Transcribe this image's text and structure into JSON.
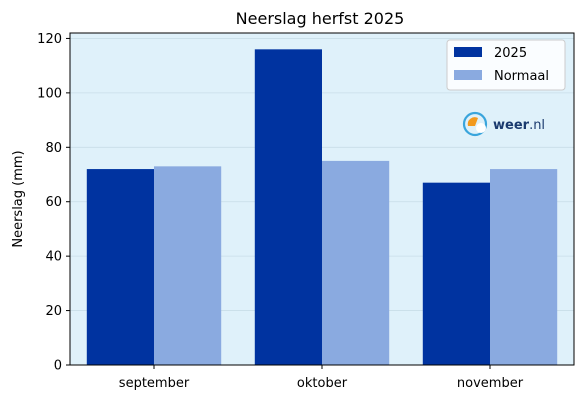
{
  "chart_data": {
    "type": "bar",
    "title": "Neerslag herfst 2025",
    "xlabel": "",
    "ylabel": "Neerslag (mm)",
    "categories": [
      "september",
      "oktober",
      "november"
    ],
    "series": [
      {
        "name": "2025",
        "values": [
          72,
          116,
          67
        ],
        "color": "#0033a0"
      },
      {
        "name": "Normaal",
        "values": [
          73,
          75,
          72
        ],
        "color": "#8aaae0"
      }
    ],
    "ylim": [
      0,
      122
    ],
    "yticks": [
      0,
      20,
      40,
      60,
      80,
      100,
      120
    ],
    "grid": true,
    "legend_position": "top-right",
    "plot_background": "#dff1fa",
    "grid_color": "#c8dde8"
  },
  "logo": {
    "brand": "weer",
    "suffix": ".nl",
    "icon": "sun-cloud-icon"
  }
}
